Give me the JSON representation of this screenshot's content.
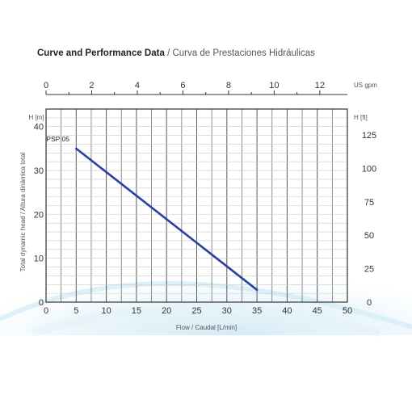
{
  "chart_data": {
    "type": "line",
    "title_en": "Curve and Performance Data",
    "title_sep": " / ",
    "title_es": "Curva de Prestaciones Hidráulicas",
    "xlabel": "Flow / Caudal [L/min]",
    "ylabel": "Total dynamic head / Altura dinámica total",
    "x_unit_top": "US gpm",
    "y_unit_left": "H [m]",
    "y_unit_right": "H [ft]",
    "xlim": [
      0,
      50
    ],
    "ylim": [
      0,
      44
    ],
    "x_ticks": [
      0,
      5,
      10,
      15,
      20,
      25,
      30,
      35,
      40,
      45,
      50
    ],
    "y_ticks": [
      0,
      10,
      20,
      30,
      40
    ],
    "top_ticks": [
      0,
      2,
      4,
      6,
      8,
      10,
      12
    ],
    "right_ticks": [
      0,
      25,
      50,
      75,
      100,
      125
    ],
    "series": [
      {
        "name": "PSP 05",
        "x": [
          5,
          35
        ],
        "y": [
          35,
          2.8
        ]
      }
    ],
    "series_color": "#2a3f9e",
    "grid": true
  }
}
